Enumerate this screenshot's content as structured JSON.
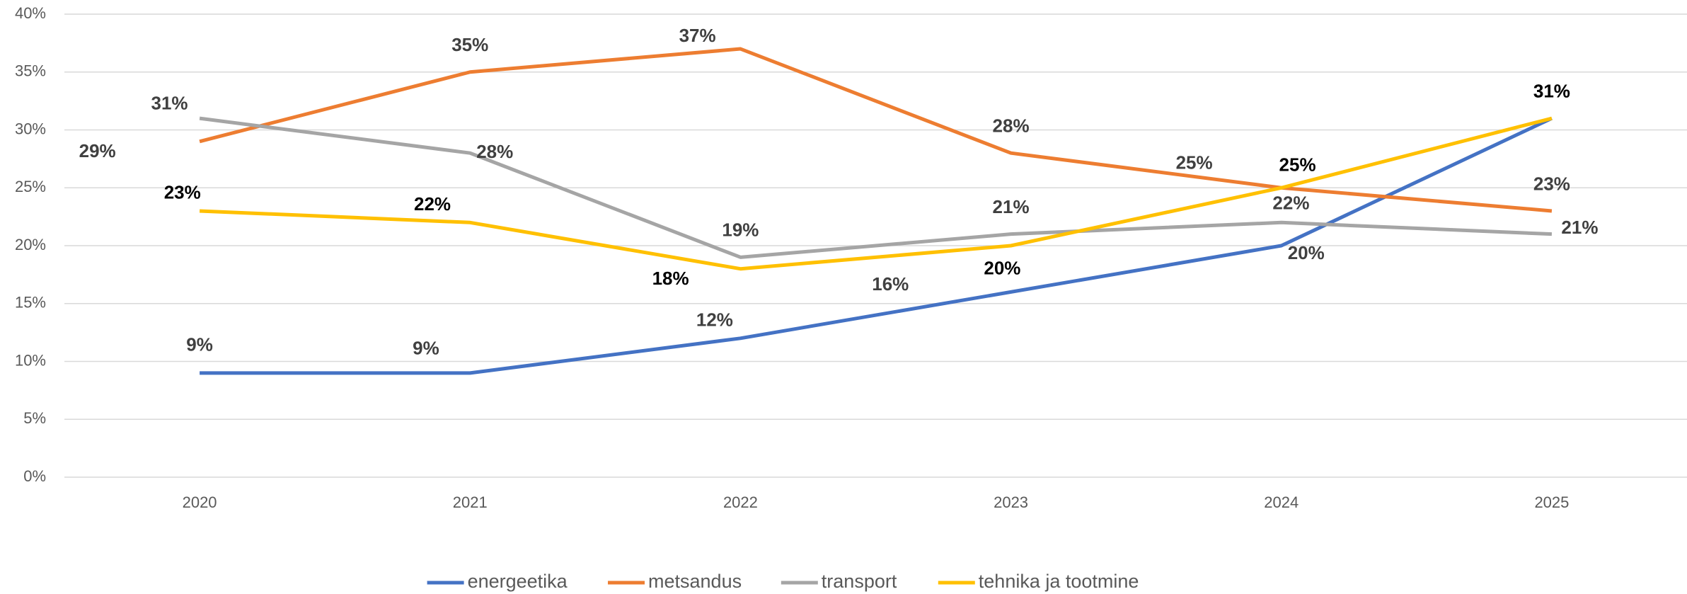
{
  "chart_data": {
    "type": "line",
    "categories": [
      "2020",
      "2021",
      "2022",
      "2023",
      "2024",
      "2025"
    ],
    "series": [
      {
        "name": "energeetika",
        "color": "#4472c4",
        "values": [
          9,
          9,
          12,
          16,
          20,
          31
        ],
        "value_labels": [
          "9%",
          "9%",
          "12%",
          "16%",
          "20%",
          "31%"
        ]
      },
      {
        "name": "metsandus",
        "color": "#ed7d31",
        "values": [
          29,
          35,
          37,
          28,
          25,
          23
        ],
        "value_labels": [
          "29%",
          "35%",
          "37%",
          "28%",
          "25%",
          "23%"
        ]
      },
      {
        "name": "transport",
        "color": "#a5a5a5",
        "values": [
          31,
          28,
          19,
          21,
          22,
          21
        ],
        "value_labels": [
          "31%",
          "28%",
          "19%",
          "21%",
          "22%",
          "21%"
        ]
      },
      {
        "name": "tehnika ja tootmine",
        "color": "#ffc000",
        "values": [
          23,
          22,
          18,
          20,
          25,
          31
        ],
        "value_labels": [
          "23%",
          "22%",
          "18%",
          "20%",
          "25%",
          "31%"
        ]
      }
    ],
    "ylim": [
      0,
      40
    ],
    "yticks": [
      {
        "value": 0,
        "label": "0%"
      },
      {
        "value": 5,
        "label": "5%"
      },
      {
        "value": 10,
        "label": "10%"
      },
      {
        "value": 15,
        "label": "15%"
      },
      {
        "value": 20,
        "label": "20%"
      },
      {
        "value": 25,
        "label": "25%"
      },
      {
        "value": 30,
        "label": "30%"
      },
      {
        "value": 35,
        "label": "35%"
      },
      {
        "value": 40,
        "label": "40%"
      }
    ],
    "grid": true,
    "legend": "bottom"
  }
}
